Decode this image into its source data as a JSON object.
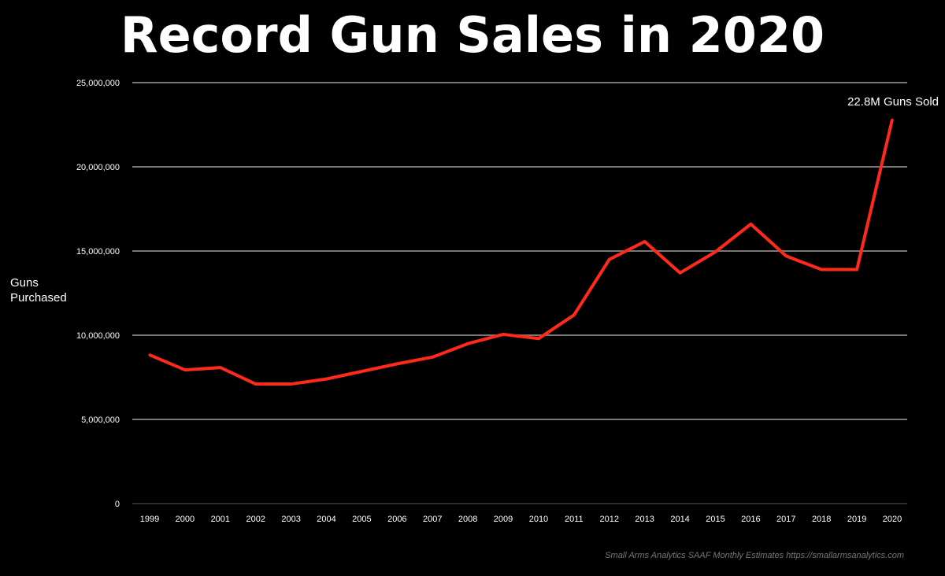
{
  "chart_data": {
    "type": "line",
    "title": "Record Gun Sales in 2020",
    "xlabel": "",
    "ylabel": "Guns Purchased",
    "ylim": [
      0,
      25000000
    ],
    "yticks": [
      0,
      5000000,
      10000000,
      15000000,
      20000000,
      25000000
    ],
    "ytick_labels": [
      "0",
      "5,000,000",
      "10,000,000",
      "15,000,000",
      "20,000,000",
      "25,000,000"
    ],
    "grid": true,
    "categories": [
      "1999",
      "2000",
      "2001",
      "2002",
      "2003",
      "2004",
      "2005",
      "2006",
      "2007",
      "2008",
      "2009",
      "2010",
      "2011",
      "2012",
      "2013",
      "2014",
      "2015",
      "2016",
      "2017",
      "2018",
      "2019",
      "2020"
    ],
    "series": [
      {
        "name": "Guns Purchased",
        "color": "#ff2a1a",
        "values": [
          8830000,
          7940000,
          8080000,
          7100000,
          7100000,
          7400000,
          7850000,
          8300000,
          8700000,
          9500000,
          10050000,
          9800000,
          11200000,
          14500000,
          15560000,
          13700000,
          14950000,
          16600000,
          14700000,
          13900000,
          13900000,
          22800000
        ]
      }
    ],
    "annotation": "22.8M Guns Sold",
    "source": "Small Arms Analytics SAAF Monthly Estimates   https://smallarmsanalytics.com"
  }
}
